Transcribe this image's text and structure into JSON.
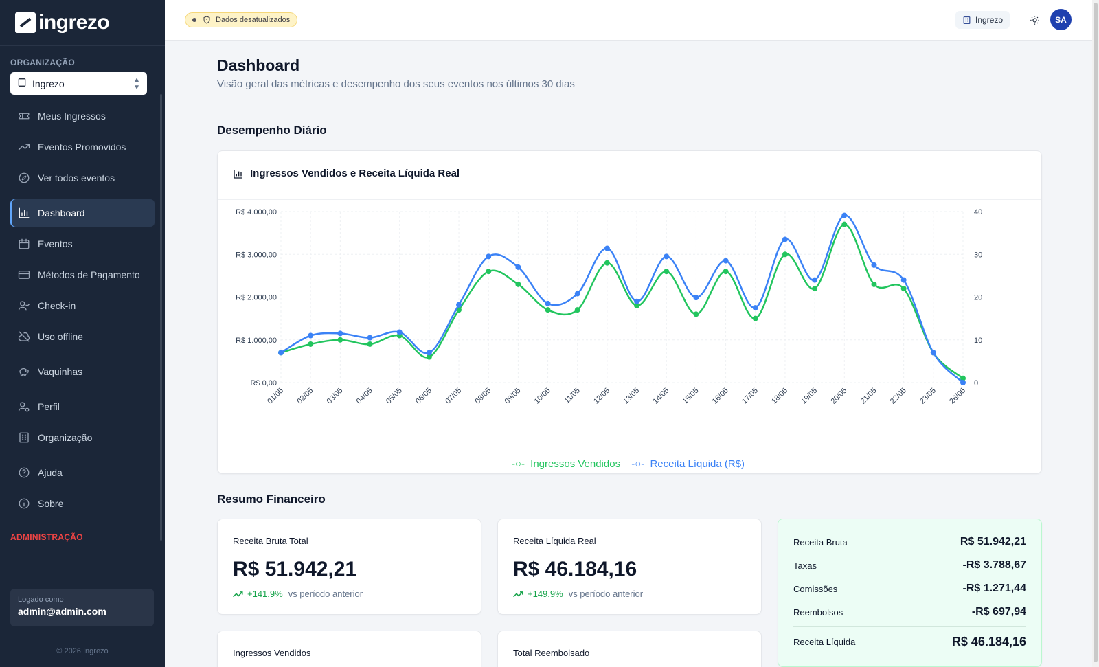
{
  "brand": {
    "name": "ingrezo"
  },
  "sidebar": {
    "org_section_label": "ORGANIZAÇÃO",
    "org_select_value": "Ingrezo",
    "items": [
      {
        "label": "Meus Ingressos",
        "icon": "ticket-icon"
      },
      {
        "label": "Eventos Promovidos",
        "icon": "trending-up-icon"
      },
      {
        "label": "Ver todos eventos",
        "icon": "compass-icon"
      },
      {
        "label": "Dashboard",
        "icon": "bar-chart-icon",
        "active": true
      },
      {
        "label": "Eventos",
        "icon": "calendar-icon"
      },
      {
        "label": "Métodos de Pagamento",
        "icon": "credit-card-icon"
      },
      {
        "label": "Check-in",
        "icon": "user-check-icon"
      },
      {
        "label": "Uso offline",
        "icon": "cloud-off-icon"
      },
      {
        "label": "Vaquinhas",
        "icon": "piggy-bank-icon"
      },
      {
        "label": "Perfil",
        "icon": "user-cog-icon"
      },
      {
        "label": "Organização",
        "icon": "building-icon"
      },
      {
        "label": "Ajuda",
        "icon": "help-circle-icon"
      },
      {
        "label": "Sobre",
        "icon": "info-icon"
      }
    ],
    "admin_section_label": "ADMINISTRAÇÃO",
    "logged_label": "Logado como",
    "logged_email": "admin@admin.com",
    "copyright": "© 2026 Ingrezo"
  },
  "topbar": {
    "status_badge": "Dados desatualizados",
    "org_chip": "Ingrezo",
    "avatar_initials": "SA"
  },
  "main": {
    "title": "Dashboard",
    "subtitle": "Visão geral das métricas e desempenho dos seus eventos nos últimos 30 dias",
    "daily_section": "Desempenho Diário",
    "chart_title": "Ingressos Vendidos e Receita Líquida Real",
    "financial_section": "Resumo Financeiro"
  },
  "kpis": {
    "gross": {
      "label": "Receita Bruta Total",
      "value": "R$ 51.942,21",
      "change": "+141.9%",
      "compare": "vs período anterior"
    },
    "net": {
      "label": "Receita Líquida Real",
      "value": "R$ 46.184,16",
      "change": "+149.9%",
      "compare": "vs período anterior"
    },
    "tickets": {
      "label": "Ingressos Vendidos"
    },
    "refunded": {
      "label": "Total Reembolsado"
    }
  },
  "summary": {
    "rows": [
      {
        "label": "Receita Bruta",
        "value": "R$ 51.942,21"
      },
      {
        "label": "Taxas",
        "value": "-R$ 3.788,67"
      },
      {
        "label": "Comissões",
        "value": "-R$ 1.271,44"
      },
      {
        "label": "Reembolsos",
        "value": "-R$ 697,94"
      }
    ],
    "total": {
      "label": "Receita Líquida",
      "value": "R$ 46.184,16"
    }
  },
  "colors": {
    "green": "#22c55e",
    "blue": "#3b82f6",
    "sidebar": "#1b2638"
  },
  "chart_data": {
    "type": "line",
    "title": "Ingressos Vendidos e Receita Líquida Real",
    "categories": [
      "01/05",
      "02/05",
      "03/05",
      "04/05",
      "05/05",
      "06/05",
      "07/05",
      "08/05",
      "09/05",
      "10/05",
      "11/05",
      "12/05",
      "13/05",
      "14/05",
      "15/05",
      "16/05",
      "17/05",
      "18/05",
      "19/05",
      "20/05",
      "21/05",
      "22/05",
      "23/05",
      "26/05"
    ],
    "y_left": {
      "ticks": [
        "R$ 0,00",
        "R$ 1.000,00",
        "R$ 2.000,00",
        "R$ 3.000,00",
        "R$ 4.000,00"
      ],
      "ylim": [
        0,
        4000
      ]
    },
    "y_right": {
      "ticks": [
        "0",
        "10",
        "20",
        "30",
        "40"
      ],
      "ylim": [
        0,
        40
      ]
    },
    "series": [
      {
        "name": "Ingressos Vendidos",
        "axis": "right",
        "color": "#22c55e",
        "values": [
          7,
          9,
          10,
          9,
          11,
          6,
          17,
          26,
          23,
          17,
          17,
          28,
          18,
          26,
          16,
          26,
          15,
          30,
          22,
          37,
          23,
          22,
          7,
          1
        ]
      },
      {
        "name": "Receita Líquida (R$)",
        "axis": "left",
        "color": "#3b82f6",
        "values": [
          700,
          1100,
          1150,
          1050,
          1180,
          700,
          1820,
          2950,
          2700,
          1850,
          2080,
          3140,
          1900,
          2950,
          1990,
          2850,
          1750,
          3350,
          2400,
          3910,
          2750,
          2400,
          700,
          0
        ]
      }
    ],
    "grid": true,
    "legend": "bottom-center"
  }
}
